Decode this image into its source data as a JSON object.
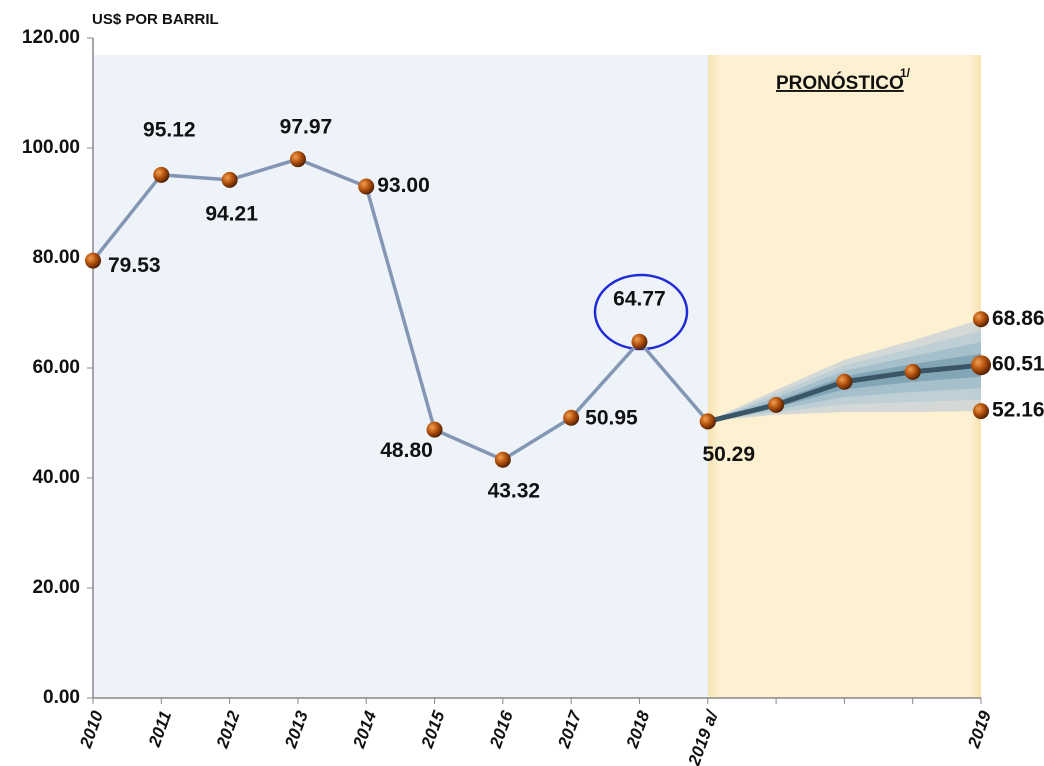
{
  "chart_data": {
    "type": "line",
    "y_label": "US$ POR BARRIL",
    "forecast_label": "PRONÓSTICO",
    "forecast_note": "1/",
    "categories": [
      "2010",
      "2011",
      "2012",
      "2013",
      "2014",
      "2015",
      "2016",
      "2017",
      "2018",
      "2019 a/",
      null,
      null,
      null,
      "2019"
    ],
    "series": [
      {
        "color": "#8397b5",
        "style": "line",
        "values": [
          79.53,
          95.12,
          94.21,
          97.97,
          93.0,
          48.8,
          43.32,
          50.95,
          64.77,
          50.29,
          null,
          null,
          null,
          null
        ],
        "value_labels": [
          "79.53",
          "95.12",
          "94.21",
          "97.97",
          "93.00",
          "48.80",
          "43.32",
          "50.95",
          "64.77",
          "50.29",
          null,
          null,
          null,
          null
        ]
      },
      {
        "color": "#3a5566",
        "style": "forecast",
        "values": [
          null,
          null,
          null,
          null,
          null,
          null,
          null,
          null,
          null,
          50.29,
          53.3,
          57.5,
          59.3,
          60.51
        ],
        "value_labels": [
          null,
          null,
          null,
          null,
          null,
          null,
          null,
          null,
          null,
          null,
          null,
          null,
          null,
          "60.51"
        ]
      },
      {
        "color": "#c9d3d8",
        "style": "band",
        "values": [
          null,
          null,
          null,
          null,
          null,
          null,
          null,
          null,
          null,
          50.29,
          56.0,
          61.5,
          65.0,
          68.86
        ],
        "value_labels": [
          null,
          null,
          null,
          null,
          null,
          null,
          null,
          null,
          null,
          null,
          null,
          null,
          null,
          "68.86"
        ]
      },
      {
        "color": "#c9d3d8",
        "style": "band",
        "values": [
          null,
          null,
          null,
          null,
          null,
          null,
          null,
          null,
          null,
          50.29,
          51.5,
          52.0,
          52.0,
          52.16
        ],
        "value_labels": [
          null,
          null,
          null,
          null,
          null,
          null,
          null,
          null,
          null,
          null,
          null,
          null,
          null,
          "52.16"
        ]
      }
    ],
    "ylim": [
      0,
      120
    ],
    "yticks": [
      {
        "value": 0,
        "label": "0.00"
      },
      {
        "value": 20,
        "label": "20.00"
      },
      {
        "value": 40,
        "label": "40.00"
      },
      {
        "value": 60,
        "label": "60.00"
      },
      {
        "value": 80,
        "label": "80.00"
      },
      {
        "value": 100,
        "label": "100.00"
      },
      {
        "value": 120,
        "label": "120.00"
      }
    ],
    "grid": false
  }
}
